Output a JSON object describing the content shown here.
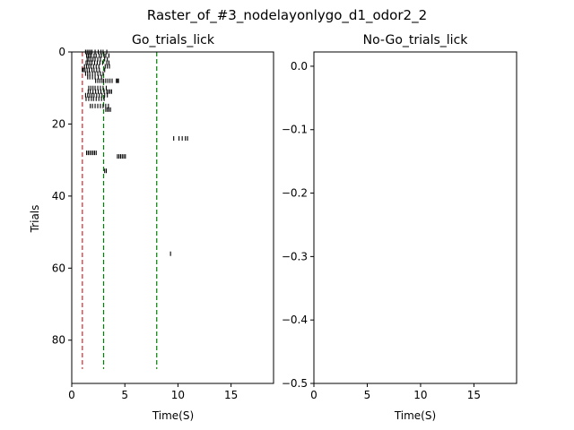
{
  "figure_title": "Raster_of_#3_nodelayonlygo_d1_odor2_2",
  "chart_data": [
    {
      "type": "scatter",
      "title": "Go_trials_lick",
      "xlabel": "Time(S)",
      "ylabel": "Trials",
      "xlim": [
        0,
        19
      ],
      "ylim": [
        92,
        0
      ],
      "xticks": [
        0,
        5,
        10,
        15
      ],
      "yticks": [
        0,
        20,
        40,
        60,
        80
      ],
      "vlines": [
        {
          "x": 1.0,
          "ymin": 0,
          "ymax": 88,
          "color": "#d62728",
          "style": "dashed"
        },
        {
          "x": 3.0,
          "ymin": 0,
          "ymax": 88,
          "color": "#008000",
          "style": "dashed"
        },
        {
          "x": 8.0,
          "ymin": 0,
          "ymax": 88,
          "color": "#008000",
          "style": "dashed"
        }
      ],
      "events": [
        {
          "trial": 0,
          "times": [
            1.3,
            1.45,
            1.6,
            1.75,
            1.9,
            2.2,
            2.5,
            2.75,
            2.95,
            3.3
          ]
        },
        {
          "trial": 1,
          "times": [
            1.4,
            1.55,
            1.7,
            1.85,
            2.1,
            2.3,
            2.6,
            2.8,
            3.05,
            3.2,
            3.5
          ]
        },
        {
          "trial": 2,
          "times": [
            1.45,
            1.6,
            1.8,
            2.0,
            2.2,
            2.45,
            2.7,
            3.1,
            3.35
          ]
        },
        {
          "trial": 3,
          "times": [
            1.35,
            1.5,
            1.7,
            1.9,
            2.15,
            2.4,
            2.65,
            2.9,
            3.3,
            3.5
          ]
        },
        {
          "trial": 4,
          "times": [
            1.2,
            1.4,
            1.6,
            1.8,
            2.05,
            2.3,
            2.55,
            3.15,
            3.35,
            3.55
          ]
        },
        {
          "trial": 5,
          "times": [
            1.0,
            1.1,
            1.25,
            1.45,
            1.65,
            1.9,
            2.1,
            2.35,
            2.6,
            3.1
          ]
        },
        {
          "trial": 6,
          "times": [
            1.3,
            1.5,
            1.7,
            1.95,
            2.2,
            2.45,
            2.7,
            2.95
          ]
        },
        {
          "trial": 7,
          "times": [
            1.5,
            1.7,
            1.95,
            2.2,
            2.5,
            2.8
          ]
        },
        {
          "trial": 8,
          "times": [
            2.25,
            2.45,
            2.65,
            2.85,
            3.0,
            3.2,
            3.4,
            3.6,
            3.8,
            4.2,
            4.3,
            4.4
          ]
        },
        {
          "trial": 10,
          "times": [
            1.6,
            1.8,
            2.0,
            2.2,
            2.45,
            2.7,
            2.95,
            3.25
          ]
        },
        {
          "trial": 11,
          "times": [
            1.55,
            1.75,
            2.0,
            2.25,
            2.5,
            2.75,
            3.05,
            3.3,
            3.45,
            3.6,
            3.75
          ]
        },
        {
          "trial": 12,
          "times": [
            1.3,
            1.5,
            1.7,
            1.9,
            2.1,
            2.35,
            2.6,
            2.85,
            3.1,
            3.35
          ]
        },
        {
          "trial": 13,
          "times": [
            1.35,
            1.6,
            1.85,
            2.05,
            2.3,
            2.55,
            2.8,
            3.05
          ]
        },
        {
          "trial": 15,
          "times": [
            1.75,
            1.95,
            2.2,
            2.45,
            2.7,
            2.95,
            3.2,
            3.45
          ]
        },
        {
          "trial": 16,
          "times": [
            3.2,
            3.35,
            3.5,
            3.65
          ]
        },
        {
          "trial": 24,
          "times": [
            9.6,
            10.1,
            10.4,
            10.7,
            10.9
          ]
        },
        {
          "trial": 28,
          "times": [
            1.4,
            1.55,
            1.7,
            1.85,
            2.0,
            2.15,
            2.3
          ]
        },
        {
          "trial": 29,
          "times": [
            4.3,
            4.45,
            4.6,
            4.75,
            4.9,
            5.05
          ]
        },
        {
          "trial": 33,
          "times": [
            3.1,
            3.25
          ]
        },
        {
          "trial": 56,
          "times": [
            9.3
          ]
        }
      ]
    },
    {
      "type": "scatter",
      "title": "No-Go_trials_lick",
      "xlabel": "Time(S)",
      "ylabel": "",
      "xlim": [
        0,
        19
      ],
      "ylim": [
        -0.5,
        0.0225
      ],
      "xticks": [
        0,
        5,
        10,
        15
      ],
      "yticks": [
        0.0,
        -0.1,
        -0.2,
        -0.3,
        -0.4,
        -0.5
      ],
      "ytick_labels": [
        "0.0",
        "−0.1",
        "−0.2",
        "−0.3",
        "−0.4",
        "−0.5"
      ],
      "events": []
    }
  ]
}
